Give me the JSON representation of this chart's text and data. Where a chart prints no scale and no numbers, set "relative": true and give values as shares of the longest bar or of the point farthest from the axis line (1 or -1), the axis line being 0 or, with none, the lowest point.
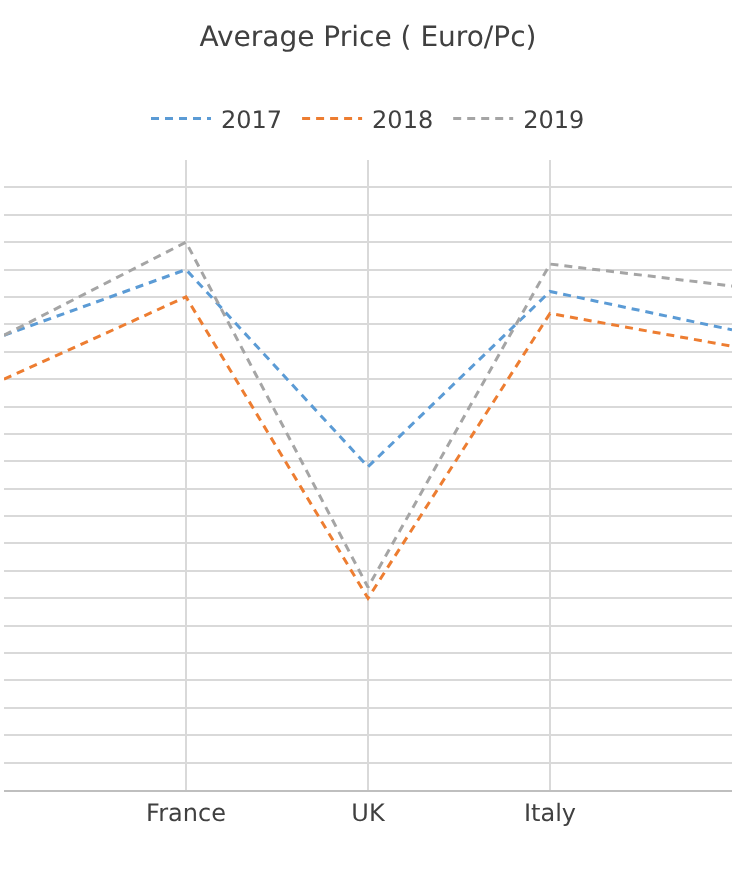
{
  "chart_data": {
    "type": "line",
    "title": "Average Price ( Euro/Pc)",
    "relative": true,
    "categories": [
      null,
      "France",
      "UK",
      "Italy",
      null
    ],
    "series": [
      {
        "name": "2017",
        "color": "#5b9bd5",
        "values": [
          0.83,
          0.95,
          0.59,
          0.91,
          0.84
        ]
      },
      {
        "name": "2018",
        "color": "#ed7d31",
        "values": [
          0.75,
          0.9,
          0.35,
          0.87,
          0.81
        ]
      },
      {
        "name": "2019",
        "color": "#a5a5a5",
        "values": [
          0.83,
          1,
          0.37,
          0.96,
          0.92
        ]
      }
    ],
    "line_style": "dashed",
    "marker": "none",
    "grid": true,
    "legend": "top"
  }
}
